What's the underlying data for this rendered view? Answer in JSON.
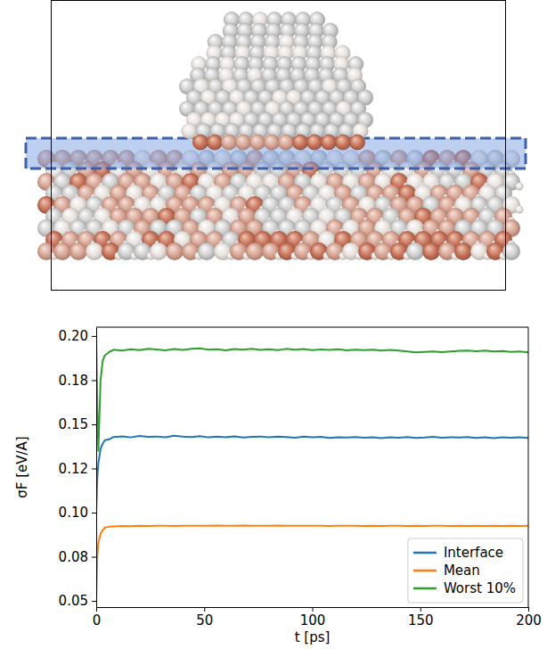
{
  "chart_data": {
    "type": "line",
    "xlabel": "t [ps]",
    "ylabel": "σF [eV/A]",
    "xlim": [
      0,
      200
    ],
    "xticks": [
      0,
      50,
      100,
      150,
      200
    ],
    "ylim": [
      0.0465,
      0.205
    ],
    "yticks": [
      {
        "value": 0.05,
        "label": "0.05"
      },
      {
        "value": 0.075,
        "label": "0.08"
      },
      {
        "value": 0.1,
        "label": "0.10"
      },
      {
        "value": 0.125,
        "label": "0.12"
      },
      {
        "value": 0.15,
        "label": "0.15"
      },
      {
        "value": 0.175,
        "label": "0.18"
      },
      {
        "value": 0.2,
        "label": "0.20"
      }
    ],
    "legend": "lower right",
    "grid": false,
    "x": [
      0,
      0.5,
      1,
      2,
      3,
      4,
      6,
      8,
      12,
      16,
      20,
      24,
      28,
      32,
      36,
      40,
      44,
      48,
      52,
      56,
      60,
      64,
      68,
      72,
      76,
      80,
      84,
      88,
      92,
      96,
      100,
      104,
      108,
      112,
      116,
      120,
      124,
      128,
      132,
      136,
      140,
      144,
      148,
      152,
      156,
      160,
      164,
      168,
      172,
      176,
      180,
      184,
      188,
      192,
      196,
      200
    ],
    "series": [
      {
        "name": "Interface",
        "color": "#1f77b4",
        "values": [
          0.1,
          0.12,
          0.128,
          0.136,
          0.139,
          0.141,
          0.1415,
          0.1428,
          0.1432,
          0.1426,
          0.1434,
          0.1429,
          0.1431,
          0.1427,
          0.1435,
          0.143,
          0.1428,
          0.1433,
          0.1426,
          0.143,
          0.1427,
          0.1432,
          0.1425,
          0.1429,
          0.1431,
          0.1426,
          0.143,
          0.1428,
          0.1424,
          0.143,
          0.1426,
          0.1429,
          0.1423,
          0.1427,
          0.1425,
          0.1428,
          0.1424,
          0.1426,
          0.1422,
          0.1427,
          0.1424,
          0.1428,
          0.1423,
          0.1425,
          0.1429,
          0.1424,
          0.1427,
          0.1425,
          0.1428,
          0.1423,
          0.1426,
          0.1422,
          0.1427,
          0.1424,
          0.1426,
          0.1423
        ]
      },
      {
        "name": "Mean",
        "color": "#ff7f0e",
        "values": [
          0.05,
          0.075,
          0.083,
          0.088,
          0.09,
          0.0915,
          0.092,
          0.0922,
          0.0924,
          0.0923,
          0.0925,
          0.0924,
          0.0926,
          0.0925,
          0.0924,
          0.0926,
          0.0925,
          0.0926,
          0.0925,
          0.0927,
          0.0926,
          0.0925,
          0.0927,
          0.0926,
          0.0925,
          0.0926,
          0.0927,
          0.0926,
          0.0925,
          0.0926,
          0.0925,
          0.0926,
          0.0924,
          0.0925,
          0.0926,
          0.0925,
          0.0924,
          0.0925,
          0.0924,
          0.0926,
          0.0925,
          0.0924,
          0.0925,
          0.0924,
          0.0925,
          0.0926,
          0.0924,
          0.0925,
          0.0924,
          0.0925,
          0.0924,
          0.0925,
          0.0924,
          0.0925,
          0.0924,
          0.0925
        ]
      },
      {
        "name": "Worst 10%",
        "color": "#2ca02c",
        "values": [
          0.201,
          0.16,
          0.135,
          0.175,
          0.186,
          0.189,
          0.191,
          0.1922,
          0.1918,
          0.1925,
          0.192,
          0.1928,
          0.1924,
          0.1919,
          0.1926,
          0.1921,
          0.1927,
          0.193,
          0.1922,
          0.1925,
          0.1919,
          0.1926,
          0.1923,
          0.1928,
          0.1921,
          0.1925,
          0.192,
          0.1927,
          0.1922,
          0.1926,
          0.192,
          0.1924,
          0.1921,
          0.1925,
          0.1919,
          0.1923,
          0.192,
          0.1922,
          0.1918,
          0.1921,
          0.1917,
          0.1912,
          0.1908,
          0.191,
          0.1913,
          0.1909,
          0.1912,
          0.1916,
          0.1918,
          0.1914,
          0.1917,
          0.1913,
          0.1915,
          0.191,
          0.1912,
          0.1908
        ]
      }
    ]
  }
}
